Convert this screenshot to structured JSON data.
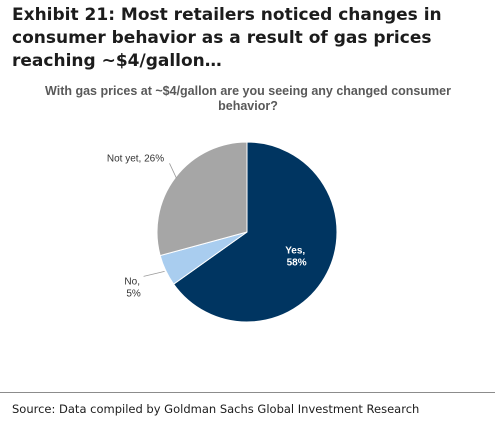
{
  "exhibit": {
    "title": "Exhibit 21: Most retailers noticed changes in consumer behavior as a result of gas prices reaching ~$4/gallon…"
  },
  "chart_data": {
    "type": "pie",
    "title": "With gas prices at ~$4/gallon are you seeing any changed consumer behavior?",
    "slices": [
      {
        "name": "Yes",
        "value_label": "58%",
        "value": 58,
        "color": "#003561"
      },
      {
        "name": "No",
        "value_label": "5%",
        "value": 5,
        "color": "#a9cdef"
      },
      {
        "name": "Not yet",
        "value_label": "26%",
        "value": 26,
        "color": "#a6a6a6"
      }
    ],
    "legend": "none",
    "data_labels": "outside with leader lines, Yes inside"
  },
  "footer": {
    "source": "Source: Data compiled by Goldman Sachs Global Investment Research"
  }
}
